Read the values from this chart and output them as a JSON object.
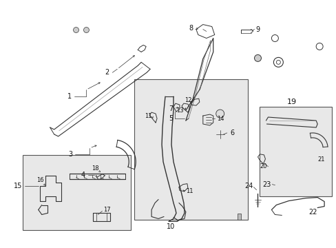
{
  "bg_color": "#ffffff",
  "line_color": "#333333",
  "label_color": "#111111",
  "box_fill": "#e8e8e8",
  "box_edge": "#555555",
  "figsize": [
    4.89,
    3.6
  ],
  "dpi": 100
}
